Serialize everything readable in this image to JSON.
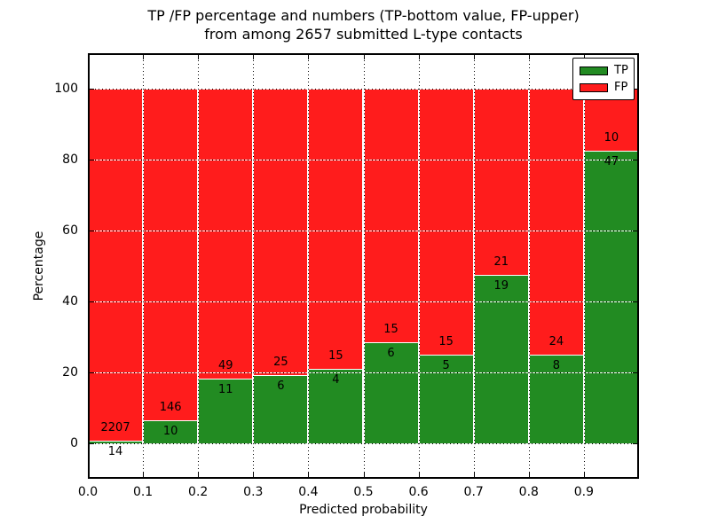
{
  "figure": {
    "title_line1": "TP /FP percentage and numbers (TP-bottom value, FP-upper)",
    "title_line2": "from among 2657 submitted L-type contacts"
  },
  "chart_data": {
    "type": "bar",
    "subtype": "stacked-percentage",
    "title": "TP /FP percentage and numbers (TP-bottom value, FP-upper)\nfrom among 2657 submitted L-type contacts",
    "xlabel": "Predicted probability",
    "ylabel": "Percentage",
    "xlim": [
      0.0,
      1.0
    ],
    "ylim": [
      -10,
      110
    ],
    "grid": true,
    "grid_style": "dotted",
    "x_tick_labels": [
      "0.0",
      "0.1",
      "0.2",
      "0.3",
      "0.4",
      "0.5",
      "0.6",
      "0.7",
      "0.8",
      "0.9"
    ],
    "y_tick_labels": [
      "0",
      "20",
      "40",
      "60",
      "80",
      "100"
    ],
    "bar_width": 0.1,
    "total_contacts": 2657,
    "categories": [
      "0.0-0.1",
      "0.1-0.2",
      "0.2-0.3",
      "0.3-0.4",
      "0.4-0.5",
      "0.5-0.6",
      "0.6-0.7",
      "0.7-0.8",
      "0.8-0.9",
      "0.9-1.0"
    ],
    "series": [
      {
        "name": "TP",
        "color": "#228b22",
        "counts": [
          14,
          10,
          11,
          6,
          4,
          6,
          5,
          19,
          8,
          47
        ]
      },
      {
        "name": "FP",
        "color": "#ff1c1c",
        "counts": [
          2207,
          146,
          49,
          25,
          15,
          15,
          15,
          21,
          24,
          10
        ]
      }
    ],
    "legend": {
      "position": "upper-right",
      "entries": [
        {
          "label": "TP",
          "color": "#228b22"
        },
        {
          "label": "FP",
          "color": "#ff1c1c"
        }
      ]
    }
  },
  "colors": {
    "tp": "#228b22",
    "fp": "#ff1c1c",
    "grid": "#000000",
    "background": "#ffffff",
    "bar_edge": "#ffffff"
  }
}
